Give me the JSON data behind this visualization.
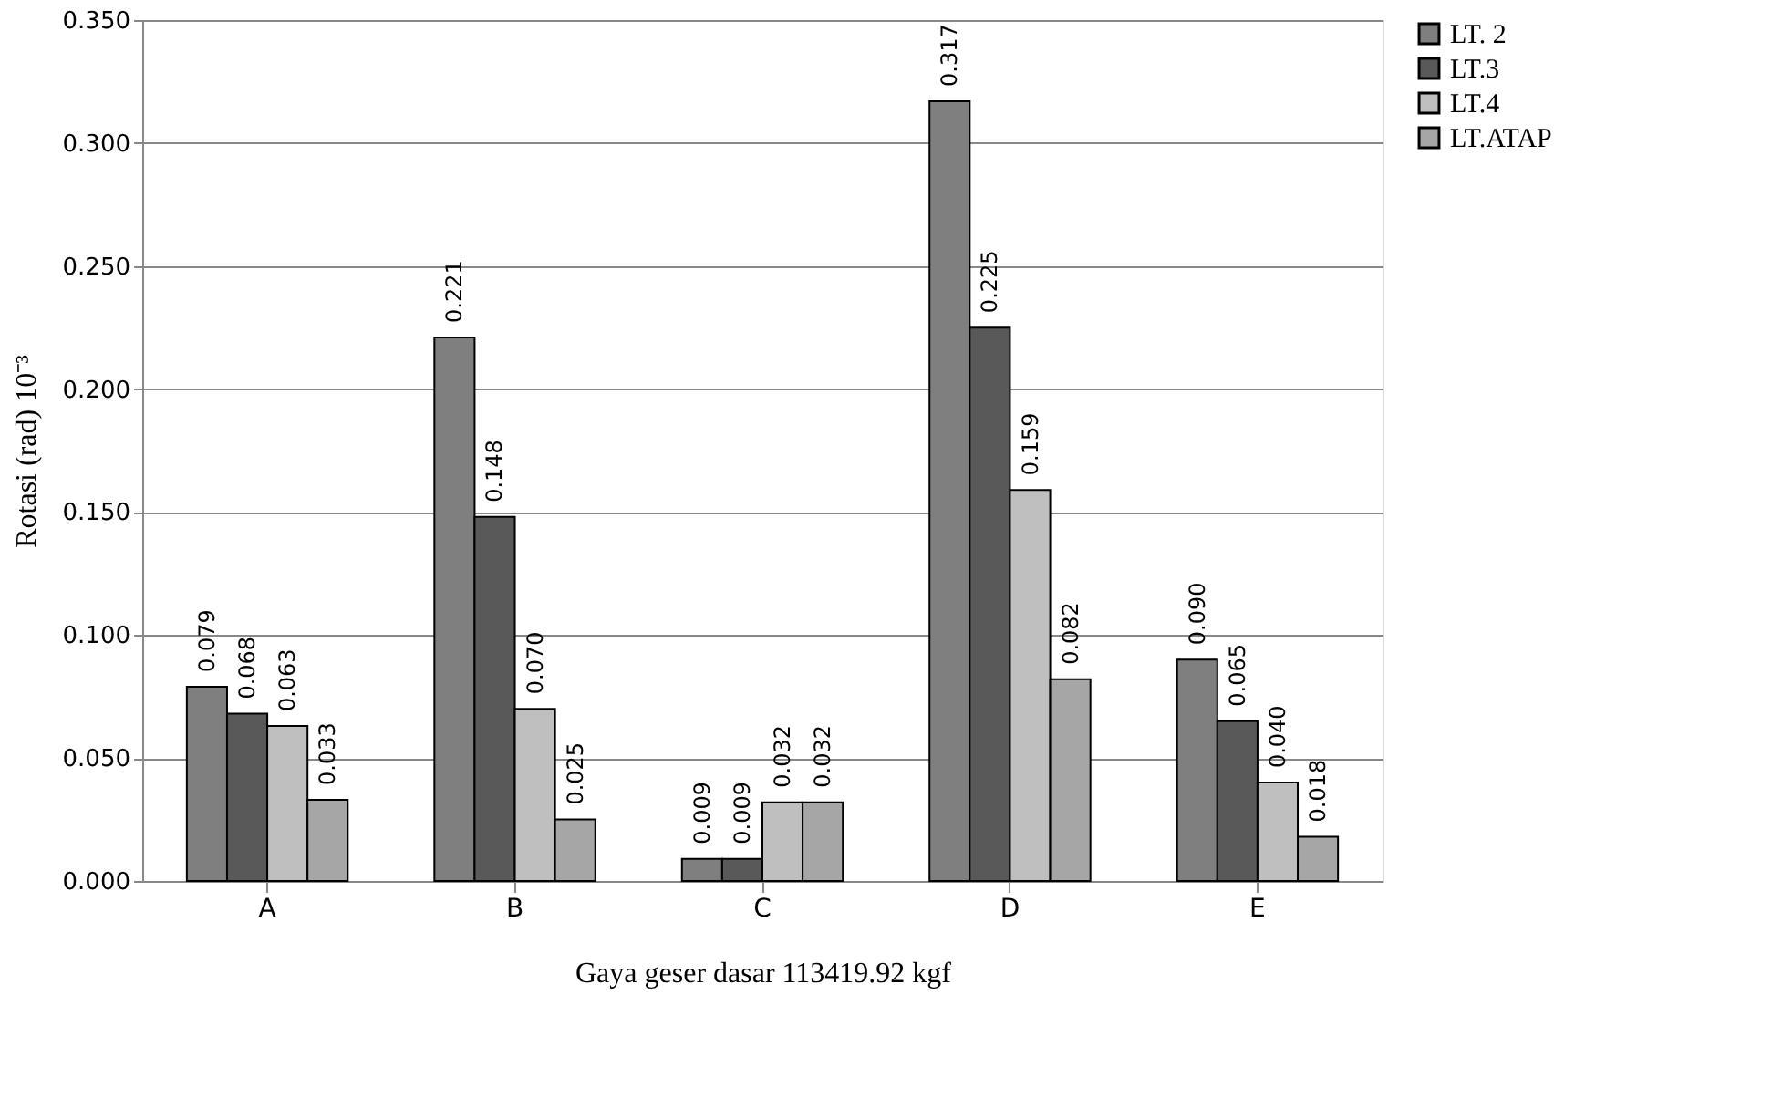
{
  "chart_data": {
    "type": "bar",
    "xlabel": "Gaya geser dasar 113419.92 kgf",
    "ylabel": "Rotasi (rad) 10⁻³",
    "categories": [
      "A",
      "B",
      "C",
      "D",
      "E"
    ],
    "series": [
      {
        "name": "LT. 2",
        "color": "#7f7f7f",
        "values": [
          0.079,
          0.221,
          0.009,
          0.317,
          0.09
        ],
        "value_labels": [
          "0.079",
          "0.221",
          "0.009",
          "0.317",
          "0.090"
        ]
      },
      {
        "name": "LT.3",
        "color": "#595959",
        "values": [
          0.068,
          0.148,
          0.009,
          0.225,
          0.065
        ],
        "value_labels": [
          "0.068",
          "0.148",
          "0.009",
          "0.225",
          "0.065"
        ]
      },
      {
        "name": "LT.4",
        "color": "#bfbfbf",
        "values": [
          0.063,
          0.07,
          0.032,
          0.159,
          0.04
        ],
        "value_labels": [
          "0.063",
          "0.070",
          "0.032",
          "0.159",
          "0.040"
        ]
      },
      {
        "name": "LT.ATAP",
        "color": "#a6a6a6",
        "values": [
          0.033,
          0.025,
          0.032,
          0.082,
          0.018
        ],
        "value_labels": [
          "0.033",
          "0.025",
          "0.032",
          "0.082",
          "0.018"
        ]
      }
    ],
    "ylim": [
      0,
      0.35
    ],
    "yticks": [
      {
        "value": 0,
        "label": "0.000"
      },
      {
        "value": 0.05,
        "label": "0.050"
      },
      {
        "value": 0.1,
        "label": "0.100"
      },
      {
        "value": 0.15,
        "label": "0.150"
      },
      {
        "value": 0.2,
        "label": "0.200"
      },
      {
        "value": 0.25,
        "label": "0.250"
      },
      {
        "value": 0.3,
        "label": "0.300"
      },
      {
        "value": 0.35,
        "label": "0.350"
      }
    ],
    "grid": "y",
    "legend": "right"
  }
}
